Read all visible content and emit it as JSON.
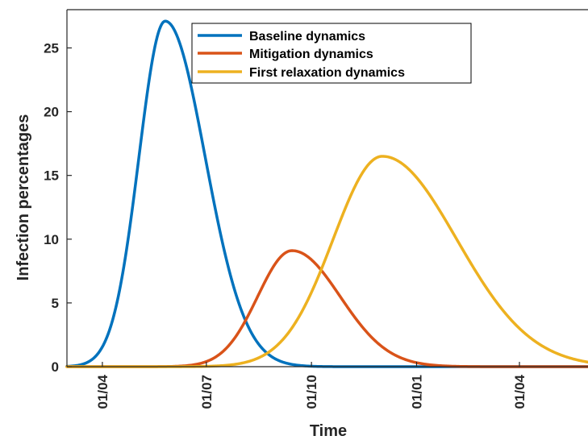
{
  "chart_data": {
    "type": "line",
    "xlabel": "Time",
    "ylabel": "Infection percentages",
    "x_ticks": [
      "01/04",
      "01/07",
      "01/10",
      "01/01",
      "01/04"
    ],
    "y_ticks": [
      "0",
      "5",
      "10",
      "15",
      "20",
      "25"
    ],
    "xlim": [
      "2020-03-01",
      "2021-05-31"
    ],
    "ylim": [
      0,
      28
    ],
    "grid": false,
    "legend_position": "top-center",
    "series": [
      {
        "name": "Baseline dynamics",
        "color": "#0072BD",
        "peak_x": "2020-05-26",
        "peak_y": 27.1,
        "rise_days": 23,
        "fall_days": 35
      },
      {
        "name": "Mitigation dynamics",
        "color": "#D95319",
        "peak_x": "2020-09-14",
        "peak_y": 9.1,
        "rise_days": 30,
        "fall_days": 42
      },
      {
        "name": "First relaxation dynamics",
        "color": "#EDB120",
        "peak_x": "2020-12-02",
        "peak_y": 16.5,
        "rise_days": 43,
        "fall_days": 65
      }
    ]
  }
}
